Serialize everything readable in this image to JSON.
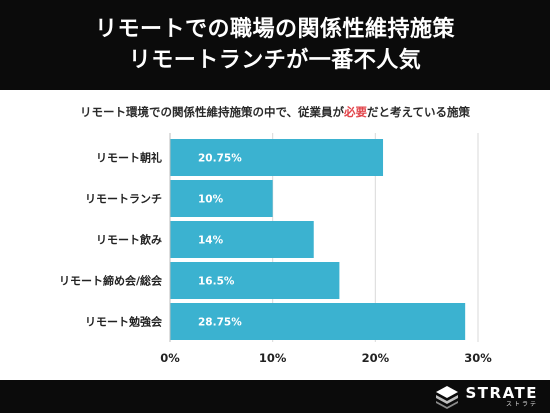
{
  "header": {
    "title_line1": "リモートでの職場の関係性維持施策",
    "title_line2": "リモートランチが一番不人気"
  },
  "subtitle": {
    "before": "リモート環境での関係性維持施策の中で、従業員が",
    "highlight": "必要",
    "after": "だと考えている施策"
  },
  "colors": {
    "bar": "#3bb2d0",
    "highlight": "#e2454b",
    "header_bg": "#0b0b0b"
  },
  "chart_data": {
    "type": "bar",
    "orientation": "horizontal",
    "categories": [
      "リモート朝礼",
      "リモートランチ",
      "リモート飲み",
      "リモート締め会/総会",
      "リモート勉強会"
    ],
    "values": [
      20.75,
      10,
      14,
      16.5,
      28.75
    ],
    "value_labels": [
      "20.75%",
      "10%",
      "14%",
      "16.5%",
      "28.75%"
    ],
    "xlim": [
      0,
      30
    ],
    "xticks": [
      0,
      10,
      20,
      30
    ],
    "xtick_labels": [
      "0%",
      "10%",
      "20%",
      "30%"
    ],
    "grid": true,
    "legend": "none"
  },
  "footer": {
    "logo_name": "STRATE",
    "logo_sub": "ストラテ",
    "logo_icon": "strate-logo-icon"
  }
}
